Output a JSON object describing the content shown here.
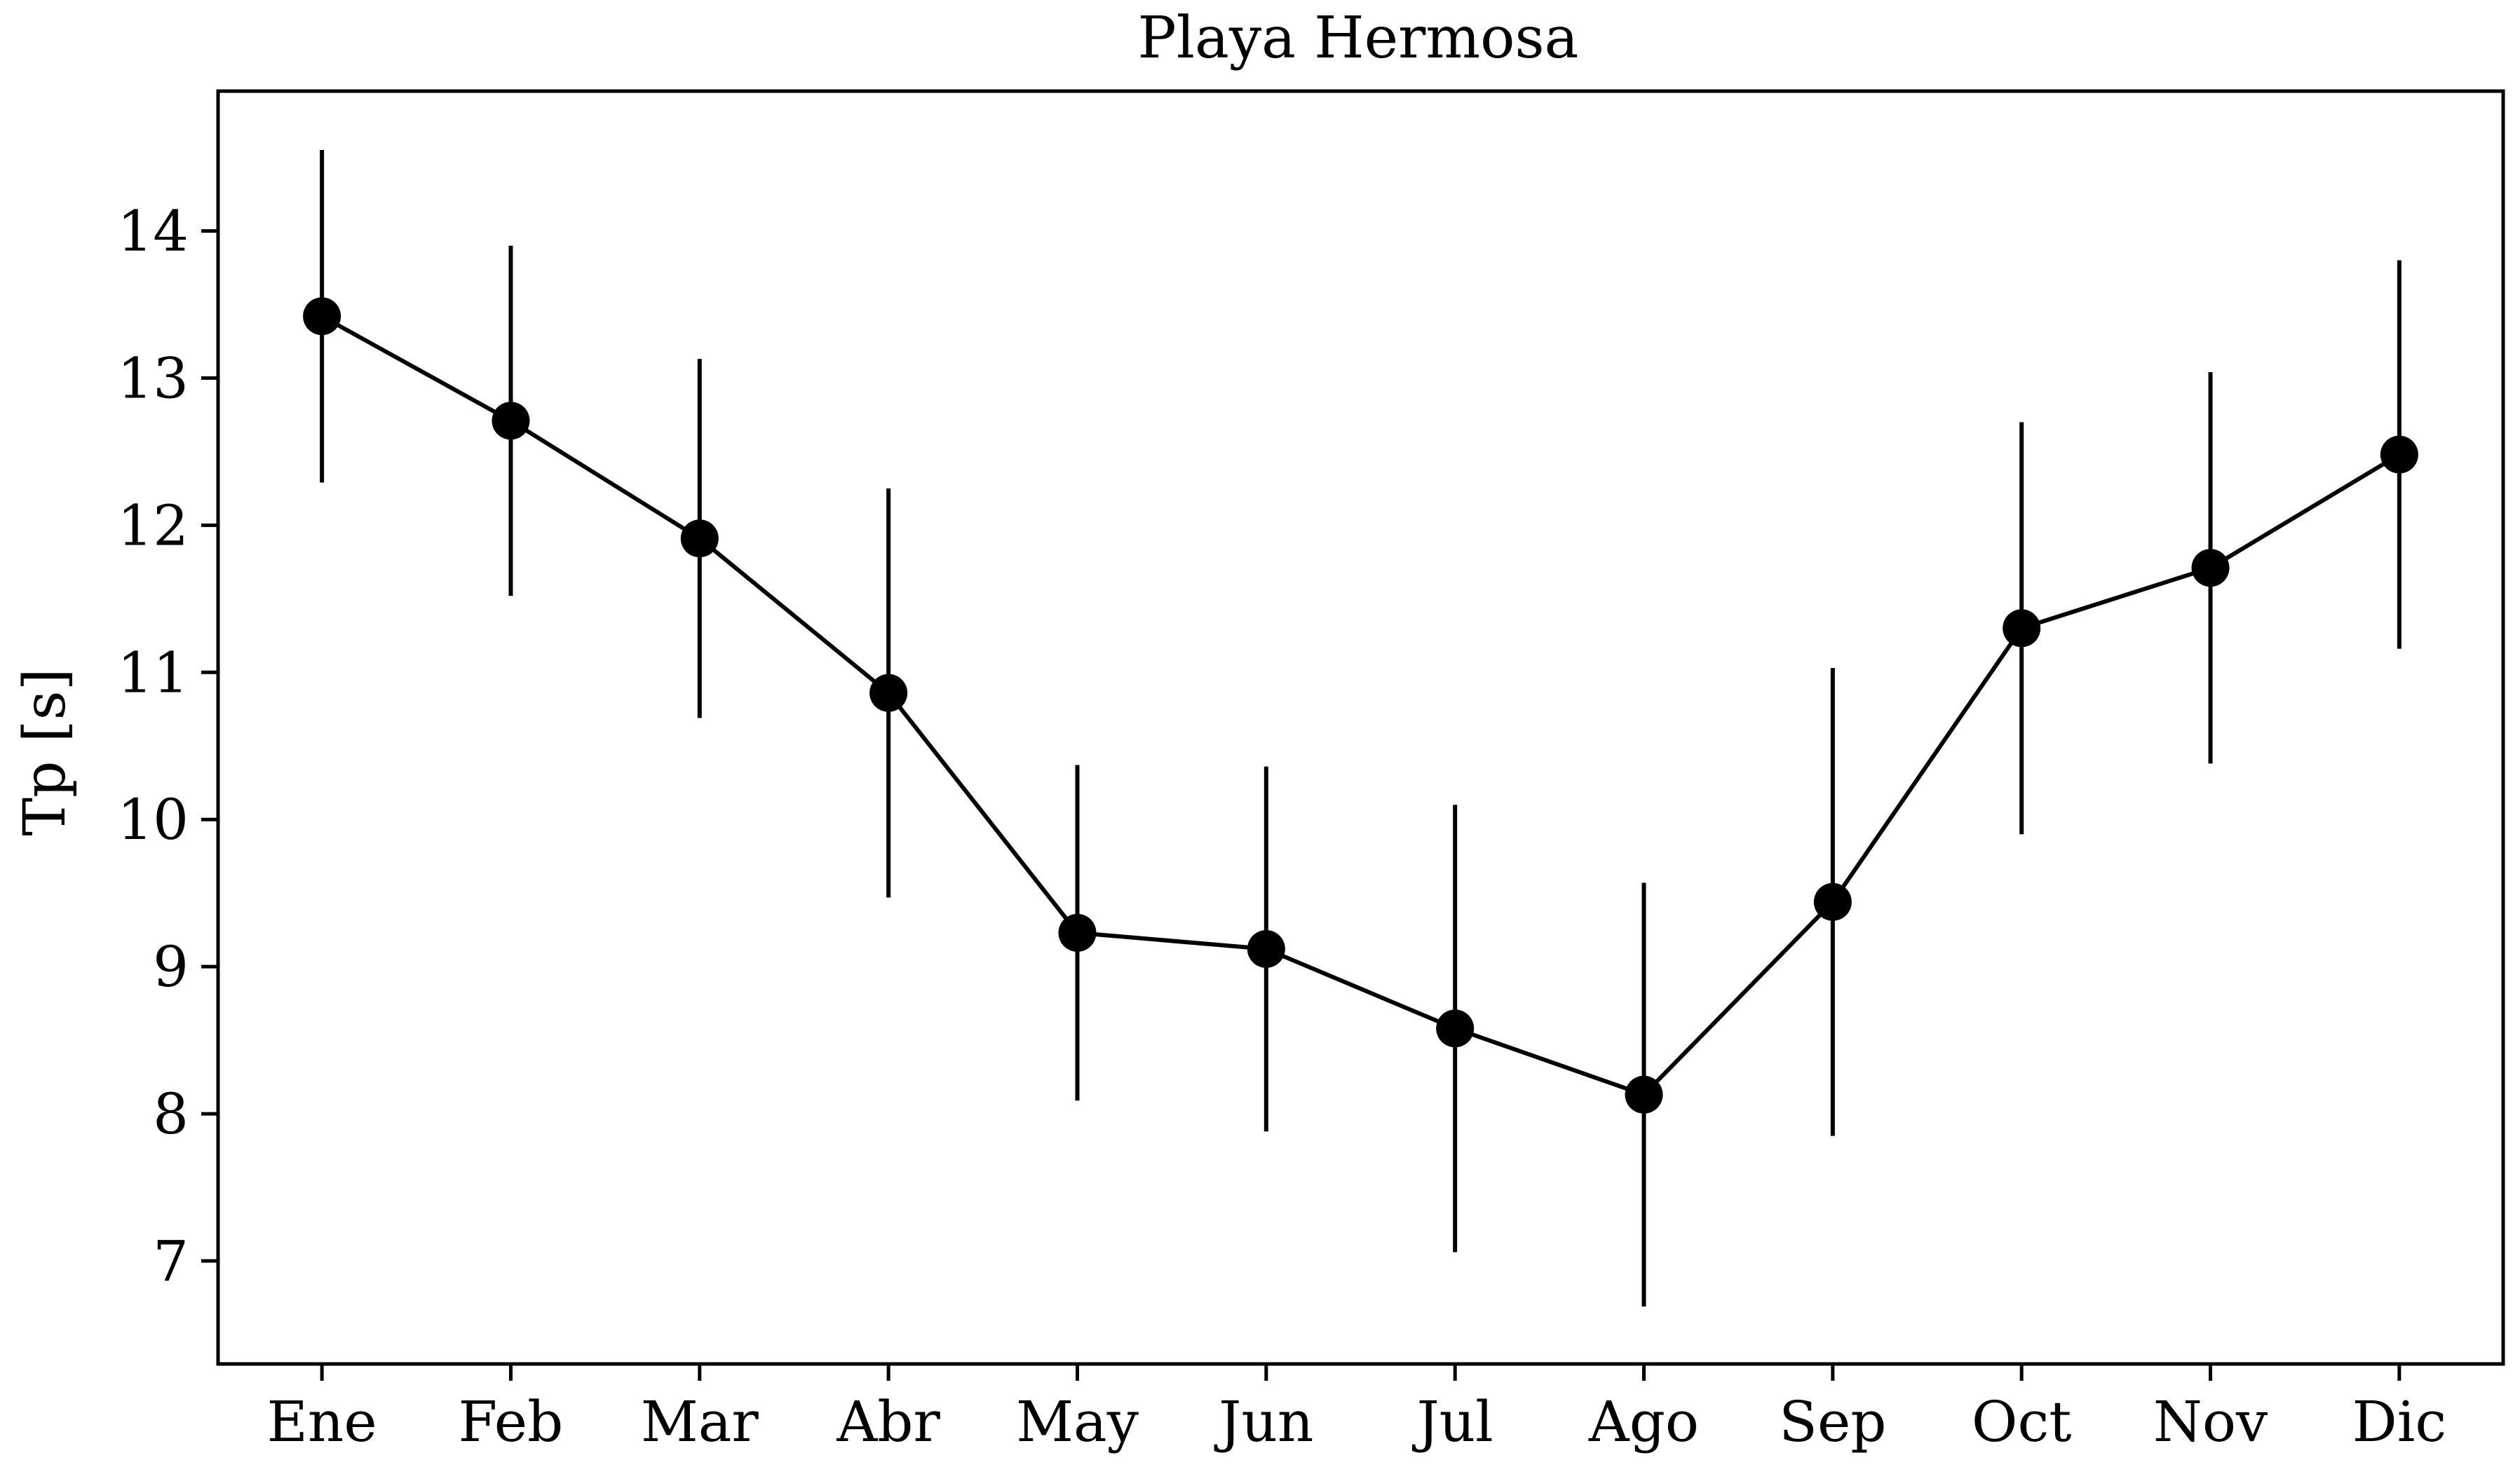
{
  "chart_data": {
    "type": "line",
    "title": "Playa Hermosa",
    "xlabel": "",
    "ylabel": "Tp [s]",
    "categories": [
      "Ene",
      "Feb",
      "Mar",
      "Abr",
      "May",
      "Jun",
      "Jul",
      "Ago",
      "Sep",
      "Oct",
      "Nov",
      "Dic"
    ],
    "series": [
      {
        "values": [
          13.42,
          12.71,
          11.91,
          10.86,
          9.23,
          9.12,
          8.58,
          8.13,
          9.44,
          11.3,
          11.71,
          12.48
        ],
        "error": [
          1.13,
          1.19,
          1.22,
          1.39,
          1.14,
          1.24,
          1.52,
          1.44,
          1.59,
          1.4,
          1.33,
          1.32
        ],
        "color": "#000000",
        "marker": "circle"
      }
    ],
    "yticks": [
      7,
      8,
      9,
      10,
      11,
      12,
      13,
      14
    ],
    "ylim": [
      6.3,
      14.95
    ],
    "xlim": [
      -0.55,
      11.55
    ],
    "grid": false,
    "legend": "none"
  }
}
